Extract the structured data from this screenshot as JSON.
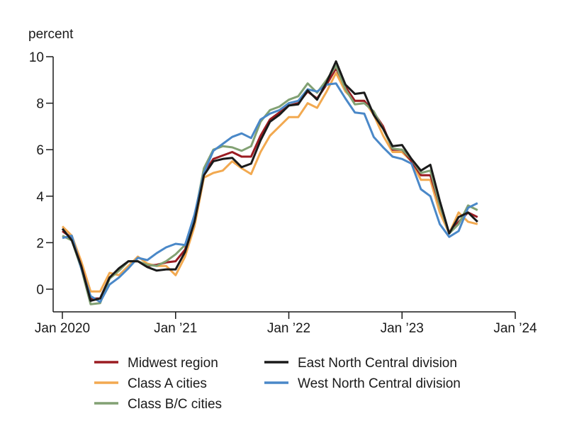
{
  "chart_data": {
    "type": "line",
    "ylabel": "percent",
    "xlabel": "",
    "ylim": [
      -1,
      10
    ],
    "yticks": [
      0,
      2,
      4,
      6,
      8,
      10
    ],
    "xlim": [
      "2020-01",
      "2024-01"
    ],
    "xticks": [
      {
        "date": "2020-01",
        "label": "Jan 2020"
      },
      {
        "date": "2021-01",
        "label": "Jan ’21"
      },
      {
        "date": "2022-01",
        "label": "Jan ’22"
      },
      {
        "date": "2023-01",
        "label": "Jan ’23"
      },
      {
        "date": "2024-01",
        "label": "Jan ’24"
      }
    ],
    "x_start": "2020-01",
    "frequency": "monthly",
    "grid": false,
    "legend_placement": "bottom",
    "series": [
      {
        "name": "Midwest region",
        "color": "#9b1c22",
        "values": [
          2.5,
          2.2,
          1.0,
          -0.4,
          -0.4,
          0.5,
          0.8,
          1.2,
          1.2,
          1.0,
          1.05,
          1.15,
          1.2,
          1.7,
          3.0,
          5.0,
          5.6,
          5.75,
          5.9,
          5.7,
          5.7,
          6.6,
          7.3,
          7.6,
          7.9,
          8.0,
          8.5,
          8.2,
          8.8,
          9.5,
          8.7,
          8.1,
          8.1,
          7.6,
          7.0,
          6.0,
          6.0,
          5.5,
          4.9,
          4.9,
          3.6,
          2.4,
          2.9,
          3.3,
          3.1
        ]
      },
      {
        "name": "East North Central division",
        "color": "#1a1a1a",
        "values": [
          2.6,
          2.1,
          1.0,
          -0.5,
          -0.4,
          0.5,
          0.9,
          1.2,
          1.2,
          0.95,
          0.8,
          0.85,
          0.85,
          1.6,
          2.9,
          4.9,
          5.5,
          5.6,
          5.65,
          5.25,
          5.4,
          6.4,
          7.2,
          7.5,
          7.9,
          7.95,
          8.55,
          8.15,
          8.9,
          9.8,
          8.8,
          8.4,
          8.45,
          7.5,
          6.9,
          6.15,
          6.2,
          5.6,
          5.1,
          5.35,
          3.8,
          2.4,
          3.1,
          3.3,
          2.9
        ]
      },
      {
        "name": "Class A cities",
        "color": "#f2a950",
        "values": [
          2.7,
          2.3,
          1.2,
          -0.1,
          -0.1,
          0.7,
          0.6,
          1.0,
          1.4,
          1.1,
          1.0,
          1.0,
          0.6,
          1.4,
          2.7,
          4.8,
          5.0,
          5.1,
          5.5,
          5.2,
          4.95,
          5.9,
          6.6,
          7.0,
          7.4,
          7.4,
          8.0,
          7.8,
          8.5,
          9.3,
          8.5,
          8.1,
          8.1,
          7.5,
          6.6,
          5.9,
          5.9,
          5.5,
          4.7,
          4.7,
          3.3,
          2.4,
          3.3,
          2.9,
          2.8
        ]
      },
      {
        "name": "West North Central division",
        "color": "#4a88c8",
        "values": [
          2.2,
          2.3,
          0.9,
          -0.3,
          -0.55,
          0.2,
          0.5,
          0.9,
          1.35,
          1.25,
          1.55,
          1.8,
          1.95,
          1.9,
          3.2,
          5.0,
          5.95,
          6.25,
          6.55,
          6.7,
          6.5,
          7.3,
          7.55,
          7.7,
          8.0,
          8.1,
          8.6,
          8.5,
          8.8,
          8.85,
          8.2,
          7.6,
          7.55,
          6.55,
          6.1,
          5.7,
          5.6,
          5.4,
          4.3,
          4.0,
          2.8,
          2.25,
          2.5,
          3.5,
          3.7
        ]
      },
      {
        "name": "Class B/C cities",
        "color": "#82a173",
        "values": [
          2.3,
          2.1,
          0.9,
          -0.65,
          -0.6,
          0.45,
          0.8,
          1.2,
          1.2,
          1.05,
          1.0,
          1.2,
          1.5,
          1.9,
          3.1,
          5.2,
          6.0,
          6.15,
          6.1,
          5.95,
          6.15,
          7.2,
          7.7,
          7.85,
          8.15,
          8.3,
          8.85,
          8.45,
          9.0,
          9.6,
          8.6,
          7.95,
          8.0,
          7.65,
          6.9,
          6.05,
          6.0,
          5.6,
          5.0,
          5.1,
          3.6,
          2.4,
          2.8,
          3.6,
          3.4
        ]
      }
    ]
  }
}
